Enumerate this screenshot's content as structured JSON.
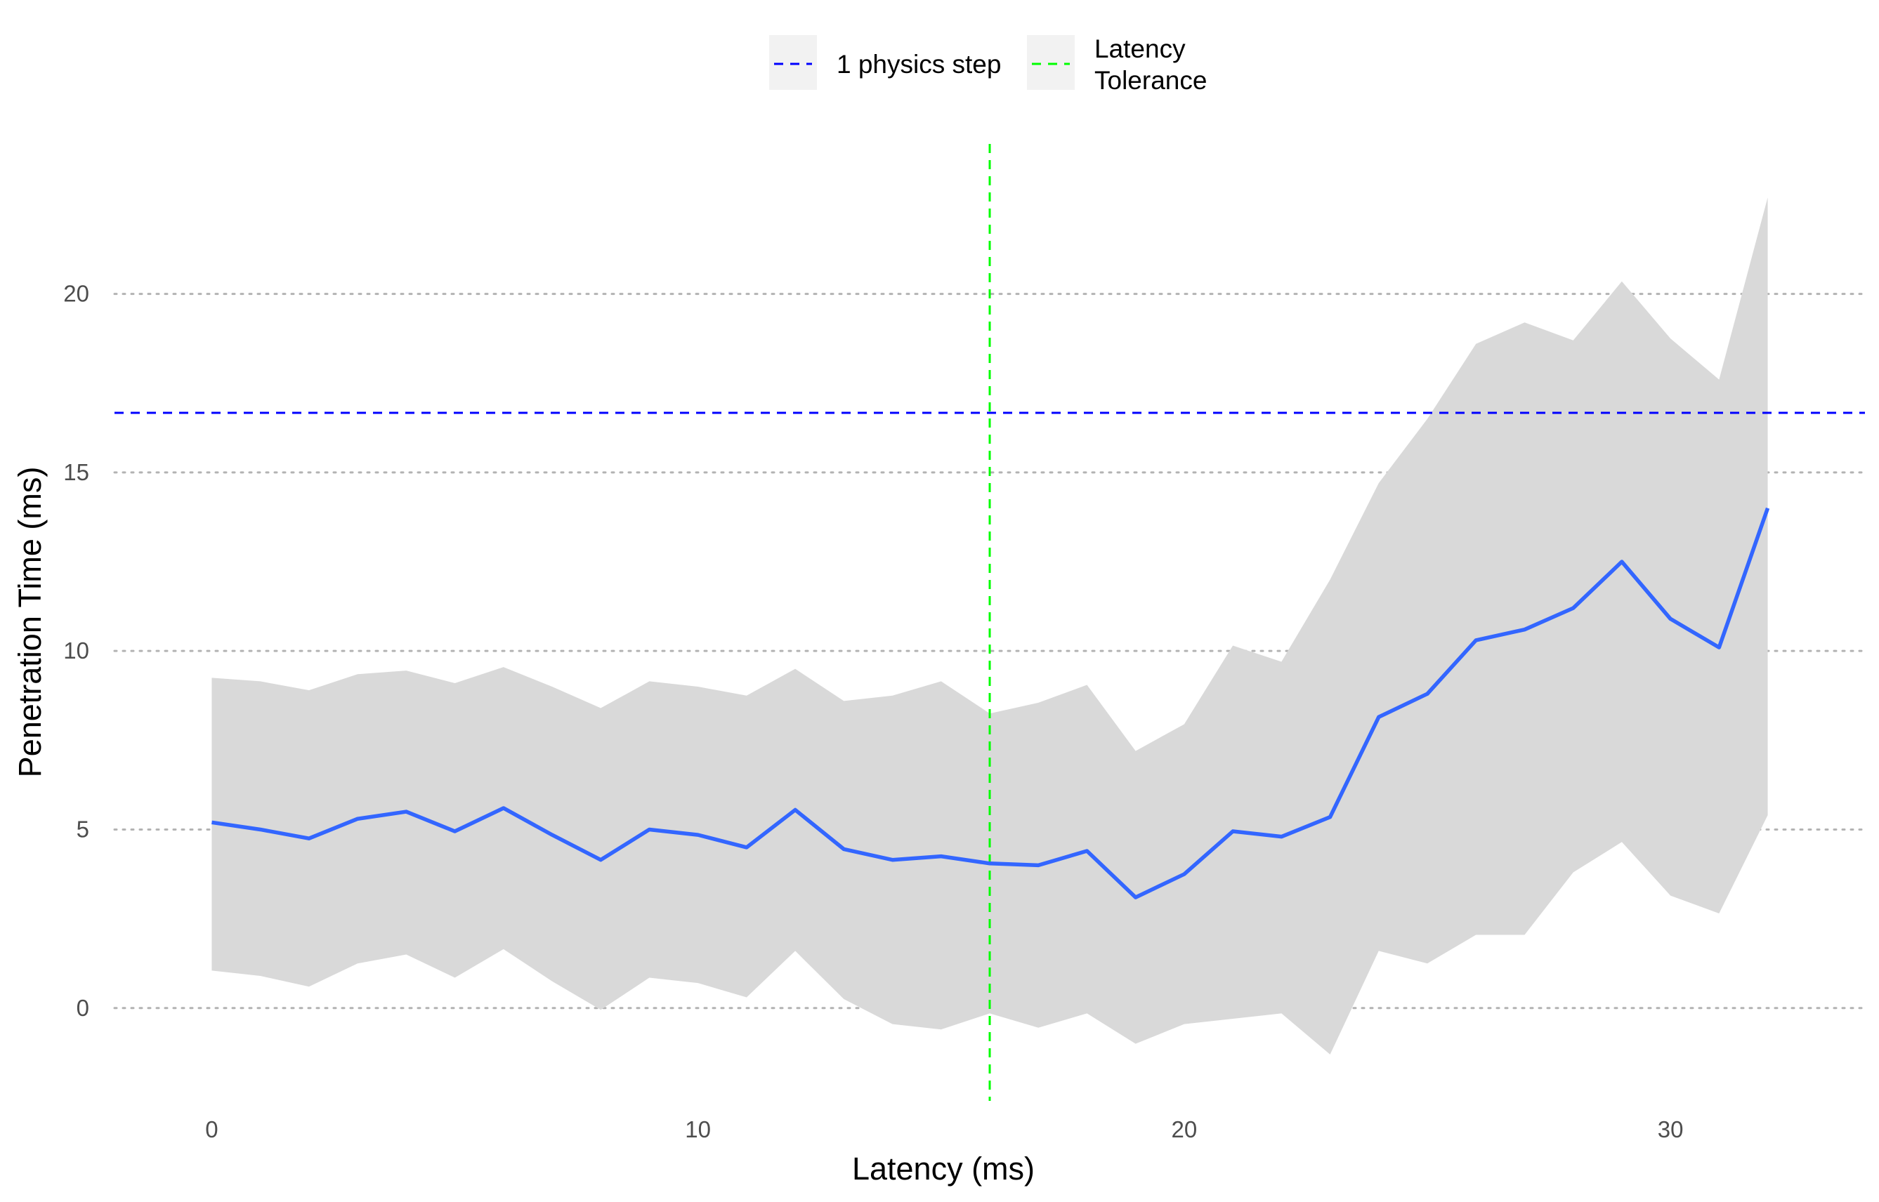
{
  "chart_data": {
    "type": "line",
    "xlabel": "Latency (ms)",
    "ylabel": "Penetration Time (ms)",
    "xlim": [
      -2,
      34
    ],
    "ylim": [
      -2.6,
      24.2
    ],
    "x_ticks": [
      0,
      10,
      20,
      30
    ],
    "y_ticks": [
      0,
      5,
      10,
      15,
      20
    ],
    "grid": "horizontal dotted",
    "legend_position": "top",
    "x": [
      0,
      1,
      2,
      3,
      4,
      5,
      6,
      7,
      8,
      9,
      10,
      11,
      12,
      13,
      14,
      15,
      16,
      17,
      18,
      19,
      20,
      21,
      22,
      23,
      24,
      25,
      26,
      27,
      28,
      29,
      30,
      31,
      32
    ],
    "series": [
      {
        "values": [
          5.2,
          5.0,
          4.75,
          5.3,
          5.5,
          4.95,
          5.6,
          4.85,
          4.15,
          5.0,
          4.85,
          4.5,
          5.55,
          4.45,
          4.15,
          4.25,
          4.05,
          4.0,
          4.4,
          3.1,
          3.75,
          4.95,
          4.8,
          5.35,
          8.15,
          8.8,
          10.3,
          10.6,
          11.2,
          12.5,
          10.9,
          10.1,
          14.0
        ],
        "color": "#3366ff"
      }
    ],
    "ribbon": {
      "lower": [
        1.05,
        0.9,
        0.6,
        1.25,
        1.5,
        0.85,
        1.65,
        0.75,
        -0.05,
        0.85,
        0.7,
        0.3,
        1.6,
        0.25,
        -0.45,
        -0.6,
        -0.15,
        -0.55,
        -0.15,
        -1.0,
        -0.45,
        -0.3,
        -0.15,
        -1.3,
        1.6,
        1.25,
        2.05,
        2.05,
        3.8,
        4.65,
        3.15,
        2.65,
        5.4
      ],
      "upper": [
        9.25,
        9.15,
        8.9,
        9.35,
        9.45,
        9.1,
        9.55,
        9.0,
        8.4,
        9.15,
        9.0,
        8.75,
        9.5,
        8.6,
        8.75,
        9.15,
        8.25,
        8.55,
        9.05,
        7.2,
        7.95,
        10.15,
        9.7,
        12.0,
        14.7,
        16.5,
        18.6,
        19.2,
        18.7,
        20.35,
        18.75,
        17.6,
        22.7
      ],
      "color": "#d9d9d9"
    },
    "reference_lines": [
      {
        "orientation": "horizontal",
        "value": 16.67,
        "color": "#0000ff",
        "style": "dashed",
        "label": "1 physics step"
      },
      {
        "orientation": "vertical",
        "value": 16,
        "color": "#00ff00",
        "style": "dashed",
        "label": "Latency Tolerance"
      }
    ],
    "legend": [
      {
        "label": "1 physics step",
        "color": "#0000ff"
      },
      {
        "label_lines": [
          "Latency",
          "Tolerance"
        ],
        "color": "#00ff00"
      }
    ]
  }
}
